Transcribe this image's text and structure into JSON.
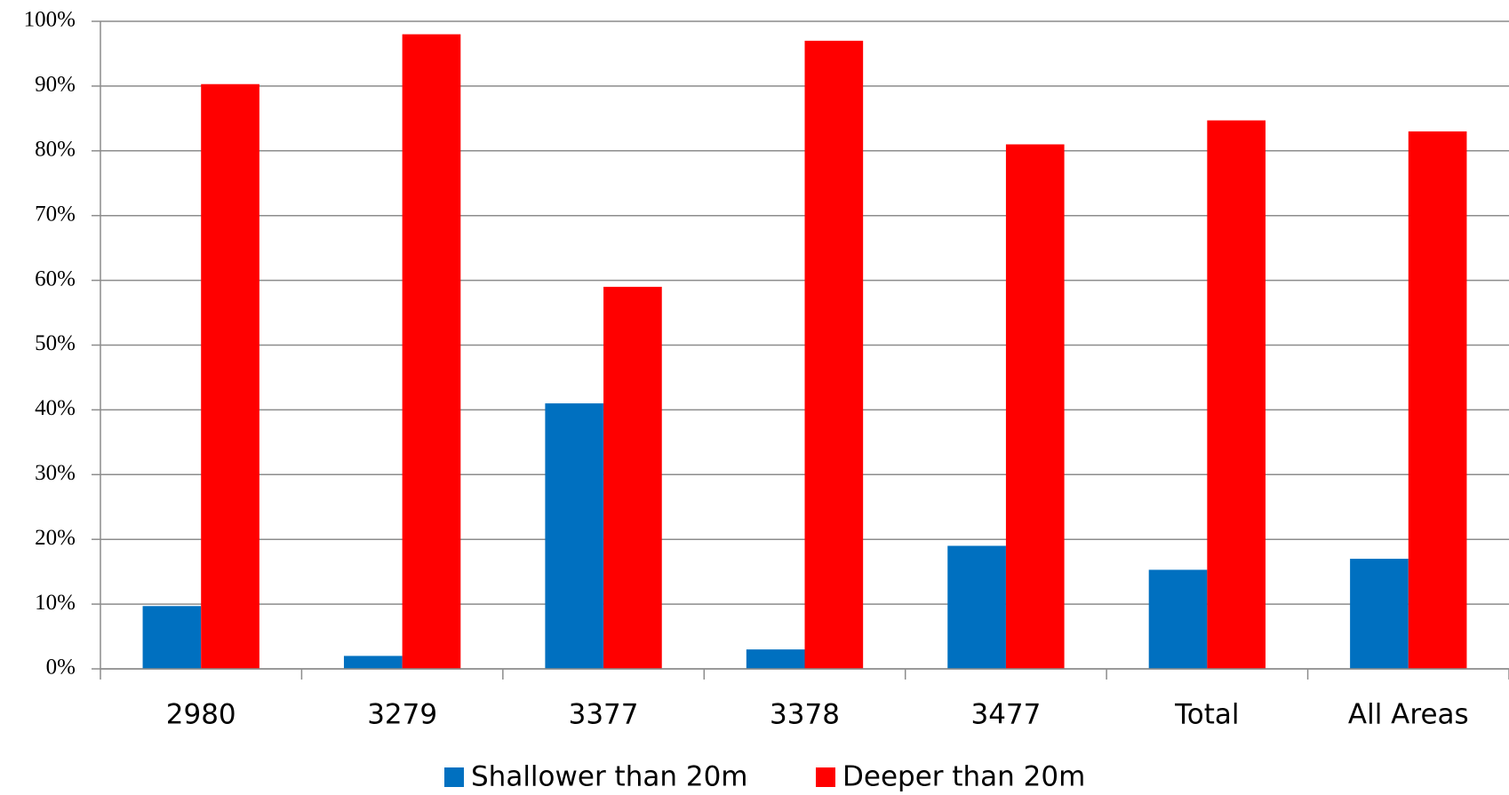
{
  "chart_data": {
    "type": "bar",
    "categories": [
      "2980",
      "3279",
      "3377",
      "3378",
      "3477",
      "Total",
      "All Areas"
    ],
    "series": [
      {
        "name": "Shallower than 20m",
        "color": "#0070c0",
        "values": [
          9.7,
          2,
          41,
          3,
          19,
          15.3,
          17
        ]
      },
      {
        "name": "Deeper than 20m",
        "color": "#ff0000",
        "values": [
          90.3,
          98,
          59,
          97,
          81,
          84.7,
          83
        ]
      }
    ],
    "ylim": [
      0,
      100
    ],
    "yticks": [
      {
        "value": 0,
        "label": "0%"
      },
      {
        "value": 10,
        "label": "10%"
      },
      {
        "value": 20,
        "label": "20%"
      },
      {
        "value": 30,
        "label": "30%"
      },
      {
        "value": 40,
        "label": "40%"
      },
      {
        "value": 50,
        "label": "50%"
      },
      {
        "value": 60,
        "label": "60%"
      },
      {
        "value": 70,
        "label": "70%"
      },
      {
        "value": 80,
        "label": "80%"
      },
      {
        "value": 90,
        "label": "90%"
      },
      {
        "value": 100,
        "label": "100%"
      }
    ],
    "grid": true,
    "legend": "bottom"
  }
}
